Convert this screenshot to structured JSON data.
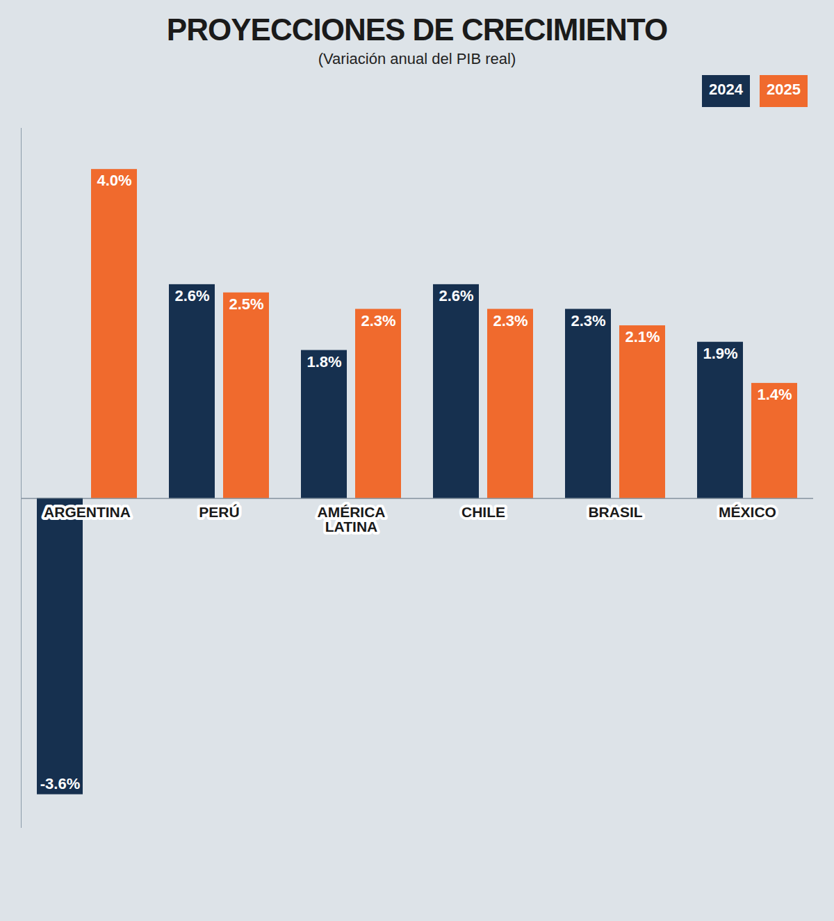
{
  "chart_data": {
    "type": "bar",
    "title": "PROYECCIONES DE CRECIMIENTO",
    "subtitle": "(Variación anual del PIB real)",
    "categories": [
      "ARGENTINA",
      "PERÚ",
      "AMÉRICA LATINA",
      "CHILE",
      "BRASIL",
      "MÉXICO"
    ],
    "series": [
      {
        "name": "2024",
        "color": "#16304f",
        "values": [
          -3.6,
          2.6,
          1.8,
          2.6,
          2.3,
          1.9
        ],
        "value_labels": [
          "-3.6%",
          "2.6%",
          "1.8%",
          "2.6%",
          "2.3%",
          "1.9%"
        ]
      },
      {
        "name": "2025",
        "color": "#f06a2d",
        "values": [
          4.0,
          2.5,
          2.3,
          2.3,
          2.1,
          1.4
        ],
        "value_labels": [
          "4.0%",
          "2.5%",
          "2.3%",
          "2.3%",
          "2.1%",
          "1.4%"
        ]
      }
    ],
    "ylim": [
      -4,
      4.5
    ],
    "tick_labels": "x",
    "data_labels": true,
    "legend": "top-right",
    "grid": false
  }
}
